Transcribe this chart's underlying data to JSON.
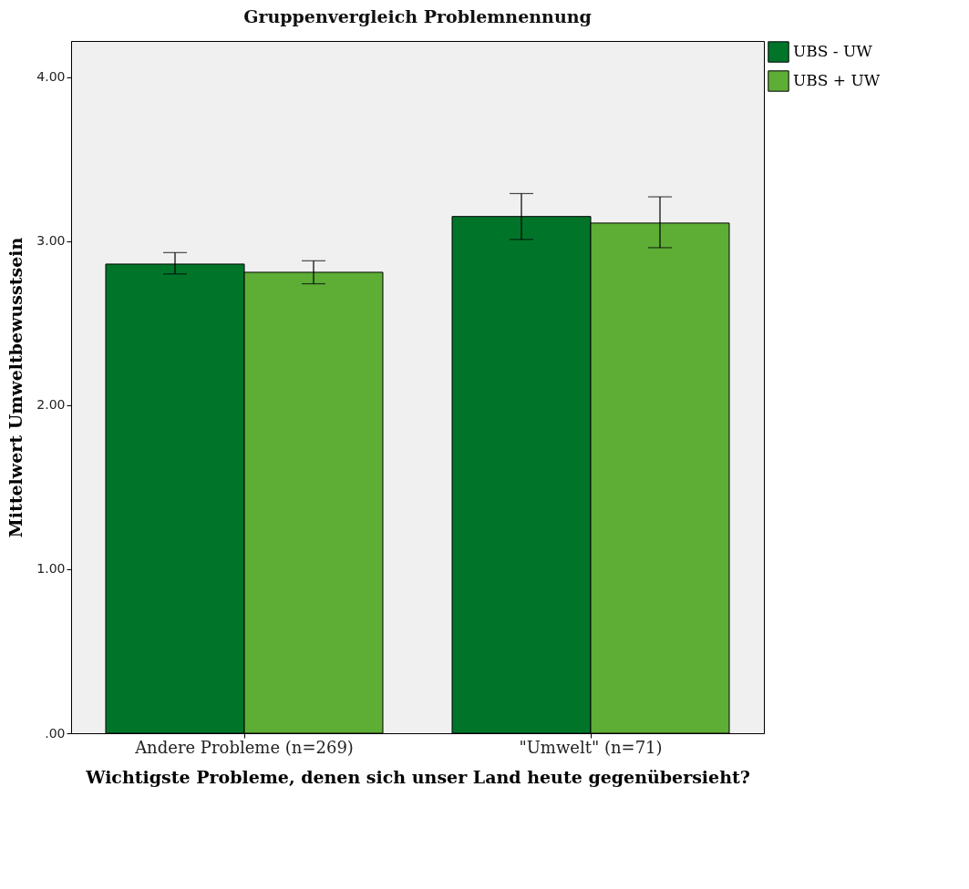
{
  "chart_data": {
    "type": "bar",
    "title": "Gruppenvergleich Problemnennung",
    "xlabel": "Wichtigste Probleme, denen sich unser Land heute gegenübersieht?",
    "ylabel": "Mittelwert Umweltbewusstsein",
    "categories": [
      "Andere Probleme (n=269)",
      "\"Umwelt\" (n=71)"
    ],
    "series": [
      {
        "name": "UBS  - UW",
        "color": "#00752a",
        "values": [
          2.86,
          3.15
        ],
        "errors": [
          [
            2.8,
            2.93
          ],
          [
            3.01,
            3.29
          ]
        ]
      },
      {
        "name": "UBS + UW",
        "color": "#5eae36",
        "values": [
          2.81,
          3.11
        ],
        "errors": [
          [
            2.74,
            2.88
          ],
          [
            2.96,
            3.27
          ]
        ]
      }
    ],
    "ylim": [
      0,
      4.22
    ],
    "yticks": [
      {
        "value": 0,
        "label": ".00"
      },
      {
        "value": 1,
        "label": "1.00"
      },
      {
        "value": 2,
        "label": "2.00"
      },
      {
        "value": 3,
        "label": "3.00"
      },
      {
        "value": 4,
        "label": "4.00"
      }
    ],
    "legend": "top right"
  }
}
